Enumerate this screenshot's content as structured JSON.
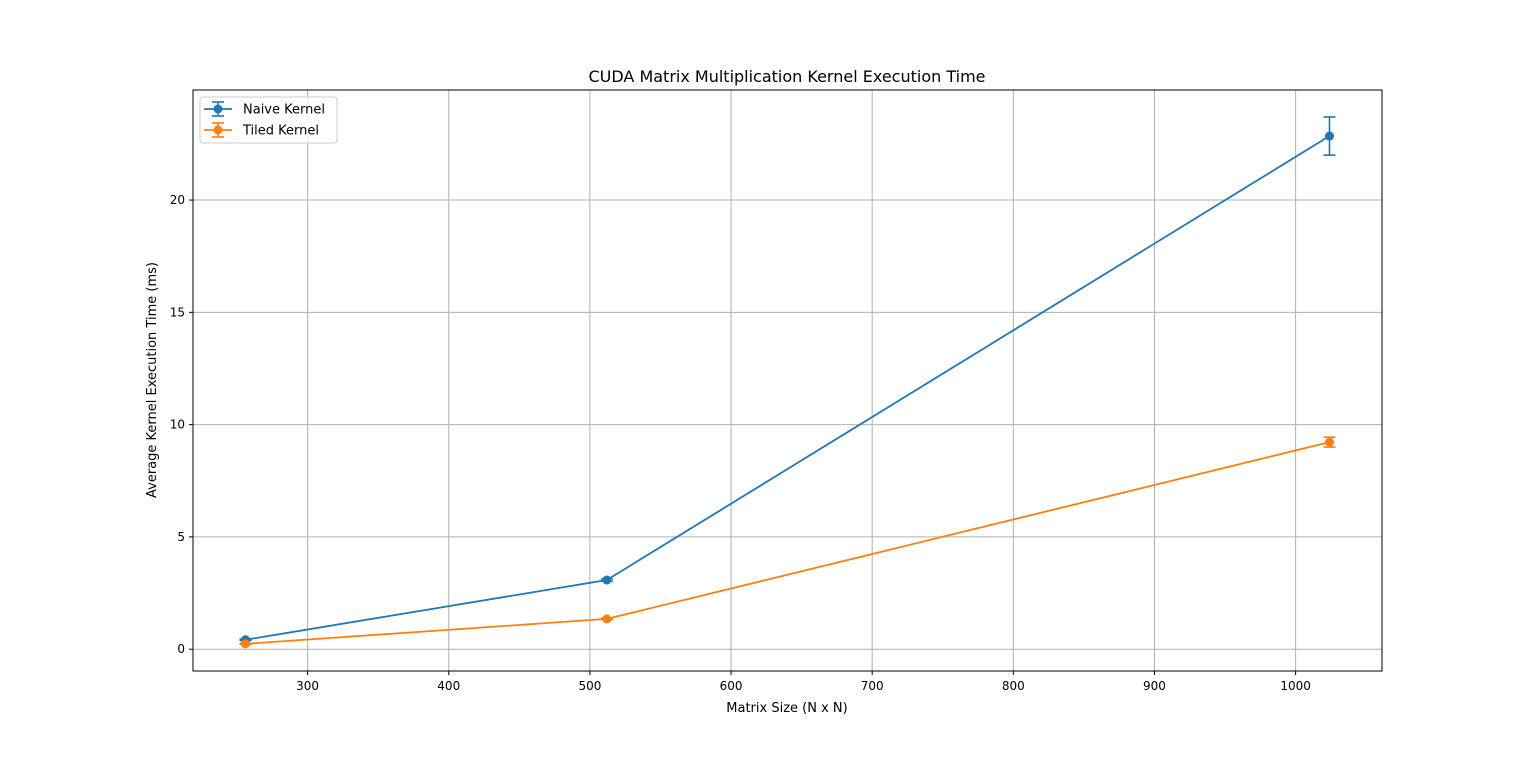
{
  "chart_data": {
    "type": "line",
    "title": "CUDA Matrix Multiplication Kernel Execution Time",
    "xlabel": "Matrix Size (N x N)",
    "ylabel": "Average Kernel Execution Time (ms)",
    "xlim": [
      218.8,
      1061.2
    ],
    "ylim": [
      -0.97,
      24.9
    ],
    "xticks": [
      300,
      400,
      500,
      600,
      700,
      800,
      900,
      1000
    ],
    "yticks": [
      0,
      5,
      10,
      15,
      20
    ],
    "grid": true,
    "legend_position": "upper left",
    "series": [
      {
        "name": "Naive Kernel",
        "color": "#1f77b4",
        "x": [
          256,
          512,
          1024
        ],
        "y": [
          0.42,
          3.08,
          22.85
        ],
        "yerr": [
          0.03,
          0.05,
          0.85
        ]
      },
      {
        "name": "Tiled Kernel",
        "color": "#ff7f0e",
        "x": [
          256,
          512,
          1024
        ],
        "y": [
          0.24,
          1.35,
          9.22
        ],
        "yerr": [
          0.02,
          0.03,
          0.22
        ]
      }
    ]
  }
}
